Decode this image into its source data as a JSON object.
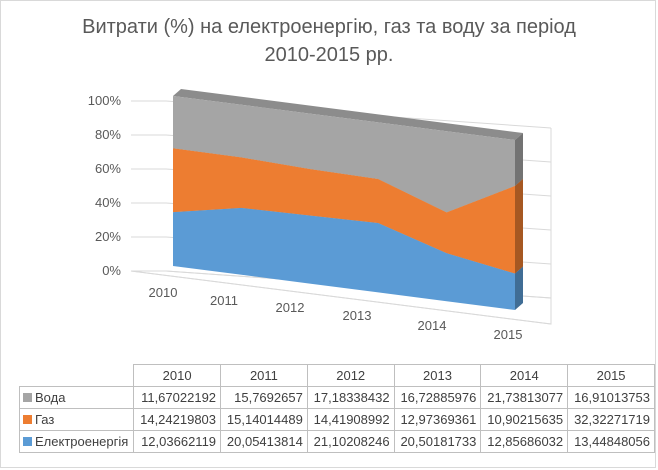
{
  "chart_data": {
    "type": "area",
    "subtype": "3d-100%-stacked",
    "title": "Витрати (%) на електроенергію, газ та воду за період 2010-2015 рр.",
    "title_lines": [
      "Витрати (%) на електроенергію, газ та воду за період",
      "2010-2015 рр."
    ],
    "categories": [
      "2010",
      "2011",
      "2012",
      "2013",
      "2014",
      "2015"
    ],
    "yticks": [
      "0%",
      "20%",
      "40%",
      "60%",
      "80%",
      "100%"
    ],
    "ylim": [
      0,
      100
    ],
    "grid": true,
    "legend": "data-table",
    "series": [
      {
        "name": "Вода",
        "color": "#a5a5a5",
        "values": [
          "11,67022192",
          "15,7692657",
          "17,18338432",
          "16,72885976",
          "21,73813077",
          "16,91013753"
        ]
      },
      {
        "name": "Газ",
        "color": "#ed7d31",
        "values": [
          "14,24219803",
          "15,14014489",
          "14,41908992",
          "12,97369361",
          "10,90215635",
          "32,32271719"
        ]
      },
      {
        "name": "Електроенергія",
        "color": "#5b9bd5",
        "values": [
          "12,03662119",
          "20,05413814",
          "21,10208246",
          "20,50181733",
          "12,85686032",
          "13,44848056"
        ]
      }
    ]
  }
}
